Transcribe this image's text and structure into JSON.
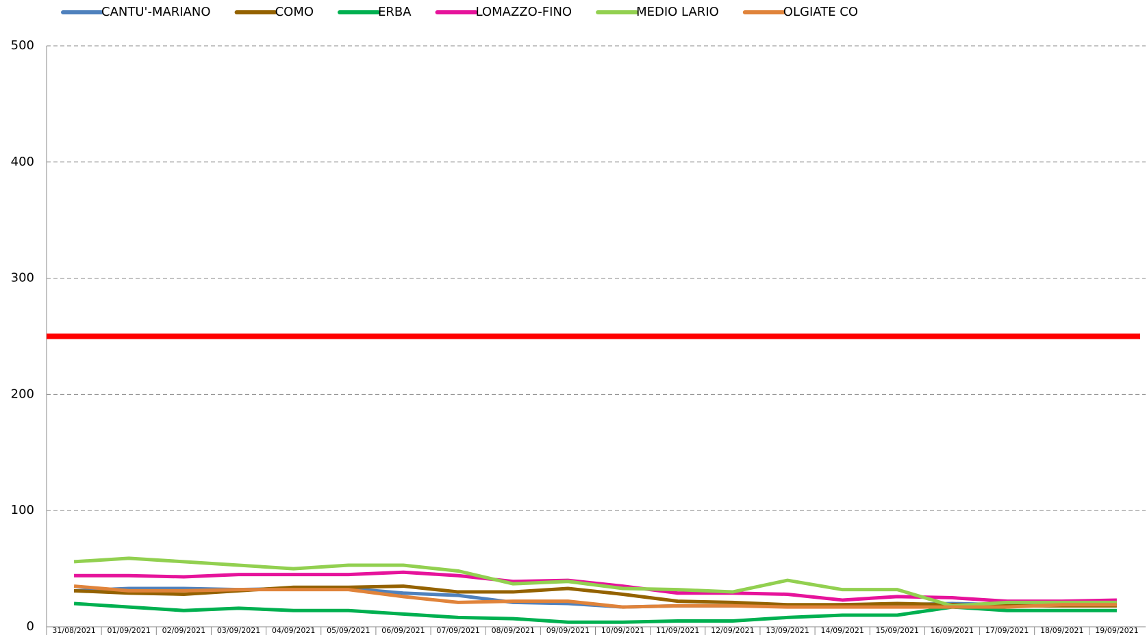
{
  "chart_data": {
    "type": "line",
    "categories": [
      "31/08/2021",
      "01/09/2021",
      "02/09/2021",
      "03/09/2021",
      "04/09/2021",
      "05/09/2021",
      "06/09/2021",
      "07/09/2021",
      "08/09/2021",
      "09/09/2021",
      "10/09/2021",
      "11/09/2021",
      "12/09/2021",
      "13/09/2021",
      "14/09/2021",
      "15/09/2021",
      "16/09/2021",
      "17/09/2021",
      "18/09/2021",
      "19/09/2021"
    ],
    "series": [
      {
        "name": "CANTU'-MARIANO",
        "color": "#4f81bd",
        "values": [
          31,
          33,
          33,
          32,
          33,
          33,
          29,
          27,
          21,
          20,
          17,
          18,
          18,
          18,
          19,
          19,
          20,
          19,
          19,
          20
        ]
      },
      {
        "name": "COMO",
        "color": "#946200",
        "values": [
          31,
          29,
          28,
          31,
          34,
          34,
          35,
          30,
          30,
          33,
          28,
          22,
          21,
          19,
          19,
          20,
          19,
          18,
          18,
          18
        ]
      },
      {
        "name": "ERBA",
        "color": "#00b050",
        "values": [
          20,
          17,
          14,
          16,
          14,
          14,
          11,
          8,
          7,
          4,
          4,
          5,
          5,
          8,
          10,
          10,
          17,
          14,
          14,
          14
        ]
      },
      {
        "name": "LOMAZZO-FINO",
        "color": "#e6139b",
        "values": [
          44,
          44,
          43,
          45,
          45,
          45,
          47,
          44,
          39,
          40,
          35,
          29,
          29,
          28,
          23,
          26,
          25,
          22,
          22,
          23
        ]
      },
      {
        "name": "MEDIO LARIO",
        "color": "#92d050",
        "values": [
          56,
          59,
          56,
          53,
          50,
          53,
          53,
          48,
          37,
          39,
          33,
          32,
          30,
          40,
          32,
          32,
          18,
          21,
          21,
          21
        ]
      },
      {
        "name": "OLGIATE CO",
        "color": "#e0833a",
        "values": [
          35,
          31,
          31,
          32,
          32,
          32,
          26,
          21,
          22,
          22,
          17,
          18,
          18,
          17,
          17,
          17,
          17,
          17,
          19,
          19
        ]
      }
    ],
    "reference_line": {
      "value": 250,
      "color": "#ff0000"
    },
    "ylim": [
      0,
      500
    ],
    "yticks": [
      0,
      100,
      200,
      300,
      400,
      500
    ],
    "grid": true
  }
}
